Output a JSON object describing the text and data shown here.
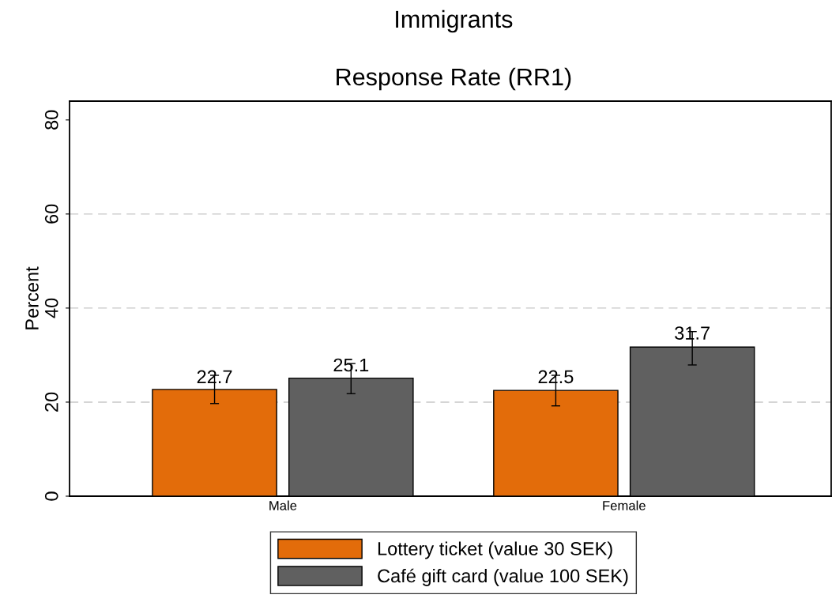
{
  "chart_data": {
    "type": "bar",
    "title": "Immigrants",
    "subtitle": "Response Rate (RR1)",
    "ylabel": "Percent",
    "categories": [
      "Male",
      "Female"
    ],
    "series": [
      {
        "name": "Lottery ticket (value 30 SEK)",
        "color": "#e36c0a",
        "values": [
          22.7,
          22.5
        ],
        "errors": [
          [
            19.7,
            25.7
          ],
          [
            19.2,
            25.7
          ]
        ]
      },
      {
        "name": "Café gift card (value 100 SEK)",
        "color": "#606060",
        "values": [
          25.1,
          31.7
        ],
        "errors": [
          [
            21.8,
            28.2
          ],
          [
            27.9,
            35.0
          ]
        ]
      }
    ],
    "ylim": [
      0,
      84
    ],
    "yticks": [
      0,
      20,
      40,
      60,
      80
    ],
    "ref_lines": [
      {
        "axis": "y",
        "value": 20,
        "color": "#c8c8c8",
        "line_style": "dashed"
      },
      {
        "axis": "y",
        "value": 40,
        "color": "#c8c8c8",
        "line_style": "dashed"
      },
      {
        "axis": "y",
        "value": 60,
        "color": "#c8c8c8",
        "line_style": "dashed"
      }
    ],
    "data_labels": true,
    "legend": "bottom"
  }
}
